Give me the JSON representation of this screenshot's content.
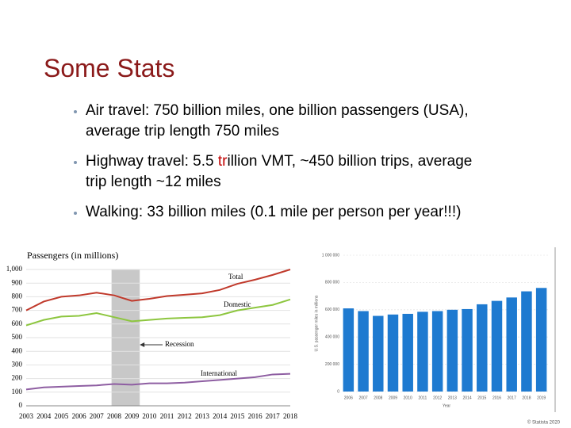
{
  "title": "Some Stats",
  "bullets": [
    [
      "Air travel: 750 billion miles, one billion passengers (USA), average trip length 750 miles"
    ],
    [
      "Highway travel: 5.5 ",
      "tr",
      "illion VMT, ~450 billion trips, average trip length ~12 miles"
    ],
    [
      "Walking: 33 billion miles (0.1 mile per person per year!!!)"
    ]
  ],
  "chart_data": [
    {
      "type": "line",
      "title": "Passengers (in millions)",
      "x": [
        2003,
        2004,
        2005,
        2006,
        2007,
        2008,
        2009,
        2010,
        2011,
        2012,
        2013,
        2014,
        2015,
        2016,
        2017,
        2018
      ],
      "xlim": [
        2003,
        2018
      ],
      "xticks": [
        2003,
        2004,
        2005,
        2006,
        2007,
        2008,
        2009,
        2010,
        2011,
        2012,
        2013,
        2014,
        2015,
        2016,
        2017,
        2018
      ],
      "ylim": [
        0,
        1000
      ],
      "yticks": [
        0,
        100,
        200,
        300,
        400,
        500,
        600,
        700,
        800,
        900,
        {
          "value": 1000,
          "label": "1,000"
        }
      ],
      "grid": true,
      "recession_span": [
        2007.85,
        2009.45
      ],
      "recession_label": "Recession",
      "series": [
        {
          "name": "Total",
          "color": "#c0392b",
          "values": [
            700,
            765,
            800,
            810,
            830,
            810,
            770,
            785,
            805,
            815,
            825,
            850,
            895,
            925,
            960,
            1000
          ]
        },
        {
          "name": "Domestic",
          "color": "#8dc63f",
          "values": [
            590,
            630,
            655,
            660,
            680,
            650,
            620,
            630,
            640,
            645,
            650,
            665,
            700,
            720,
            740,
            780
          ]
        },
        {
          "name": "International",
          "color": "#8e5ea2",
          "values": [
            120,
            135,
            140,
            145,
            150,
            160,
            155,
            165,
            165,
            170,
            180,
            190,
            200,
            210,
            230,
            235
          ]
        }
      ]
    },
    {
      "type": "bar",
      "categories": [
        "2006",
        "2007",
        "2008",
        "2009",
        "2010",
        "2011",
        "2012",
        "2013",
        "2014",
        "2015",
        "2016",
        "2017",
        "2018",
        "2019"
      ],
      "values": [
        610000,
        590000,
        555000,
        565000,
        570000,
        585000,
        590000,
        600000,
        605000,
        640000,
        665000,
        690000,
        735000,
        760000
      ],
      "color": "#1e7ad0",
      "ylim": [
        0,
        1000000
      ],
      "yticks": [
        0,
        {
          "value": 200000,
          "label": "200 000"
        },
        {
          "value": 400000,
          "label": "400 000"
        },
        {
          "value": 600000,
          "label": "600 000"
        },
        {
          "value": 800000,
          "label": "800 000"
        },
        {
          "value": 1000000,
          "label": "1 000 000"
        }
      ],
      "grid": true,
      "ylabel": "U.S. passenger miles in millions",
      "xlabel": "Year",
      "source": "© Statista 2020"
    }
  ]
}
